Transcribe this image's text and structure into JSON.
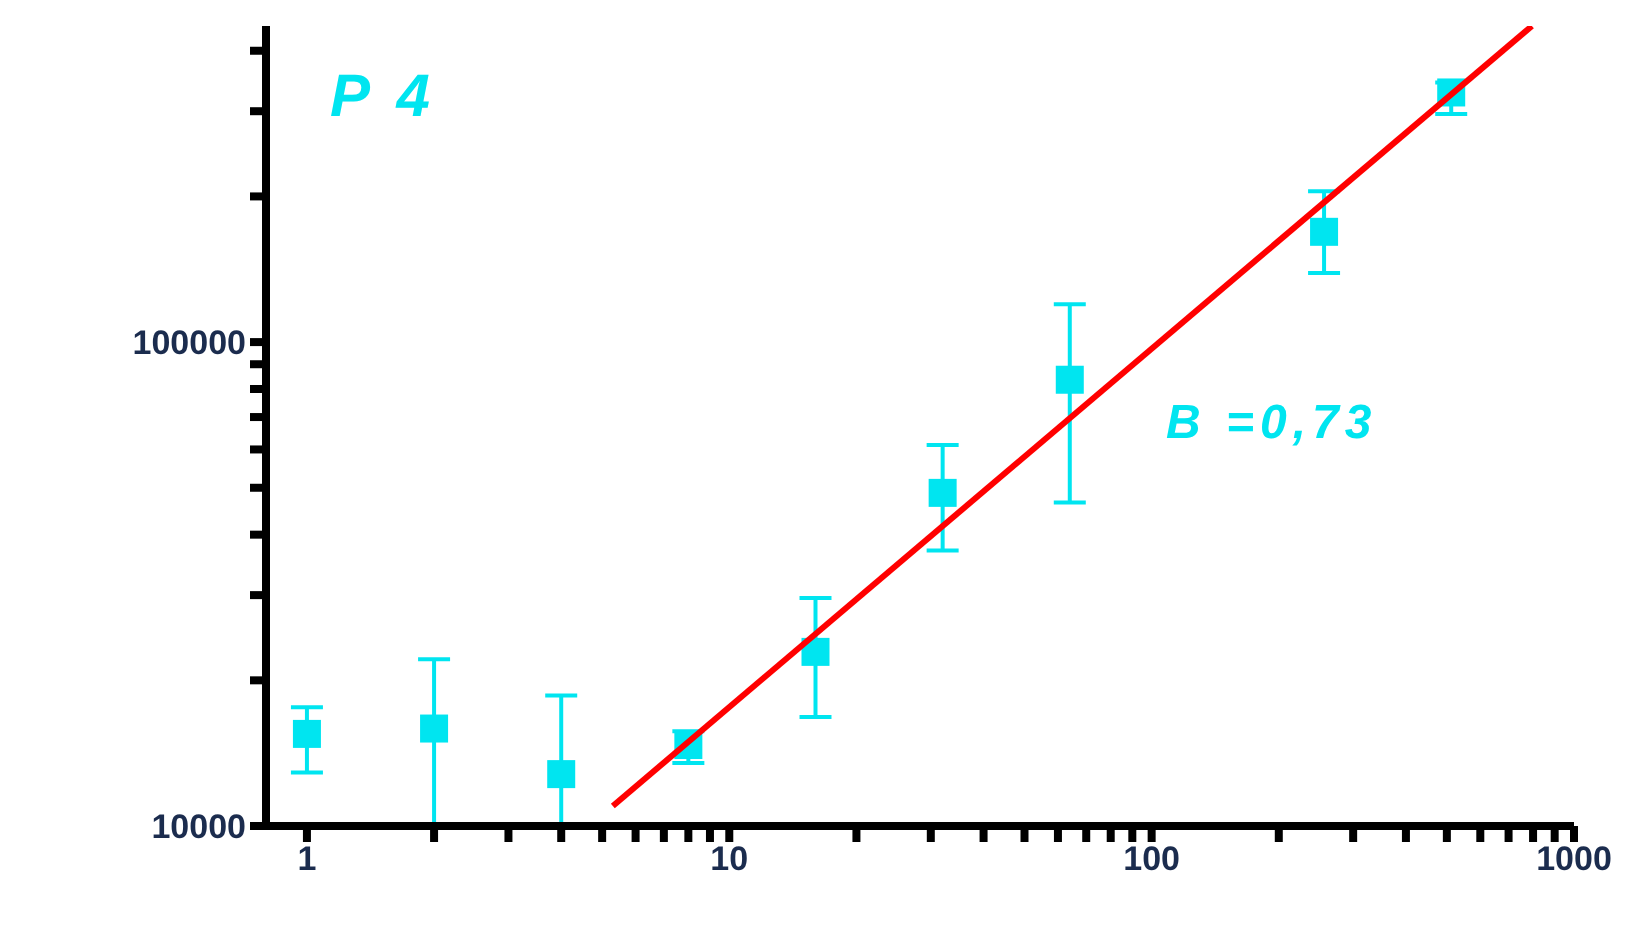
{
  "chart_data": {
    "type": "scatter",
    "annotations": [
      "P 4",
      "B =0,73"
    ],
    "log": "xy",
    "marker": "square",
    "xlim": [
      0.8,
      1000
    ],
    "xticks": [
      1,
      {
        "value": 2,
        "label": null
      },
      {
        "value": 3,
        "label": null
      },
      {
        "value": 4,
        "label": null
      },
      {
        "value": 5,
        "label": null
      },
      {
        "value": 6,
        "label": null
      },
      {
        "value": 7,
        "label": null
      },
      {
        "value": 8,
        "label": null
      },
      {
        "value": 9,
        "label": null
      },
      10,
      {
        "value": 20,
        "label": null
      },
      {
        "value": 30,
        "label": null
      },
      {
        "value": 40,
        "label": null
      },
      {
        "value": 50,
        "label": null
      },
      {
        "value": 60,
        "label": null
      },
      {
        "value": 70,
        "label": null
      },
      {
        "value": 80,
        "label": null
      },
      {
        "value": 90,
        "label": null
      },
      100,
      {
        "value": 200,
        "label": null
      },
      {
        "value": 300,
        "label": null
      },
      {
        "value": 400,
        "label": null
      },
      {
        "value": 500,
        "label": null
      },
      {
        "value": 600,
        "label": null
      },
      {
        "value": 700,
        "label": null
      },
      {
        "value": 800,
        "label": null
      },
      {
        "value": 900,
        "label": null
      },
      1000
    ],
    "ylim": [
      10000,
      450000
    ],
    "yticks": [
      10000,
      {
        "value": 20000,
        "label": null
      },
      {
        "value": 30000,
        "label": null
      },
      {
        "value": 40000,
        "label": null
      },
      {
        "value": 50000,
        "label": null
      },
      {
        "value": 60000,
        "label": null
      },
      {
        "value": 70000,
        "label": null
      },
      {
        "value": 80000,
        "label": null
      },
      {
        "value": 90000,
        "label": null
      },
      100000,
      {
        "value": 200000,
        "label": null
      },
      {
        "value": 300000,
        "label": null
      },
      {
        "value": 400000,
        "label": null
      }
    ],
    "series": [
      {
        "color": "#00e5f0",
        "x": [
          1,
          2,
          4,
          8,
          16,
          32,
          64,
          256,
          512
        ],
        "values": [
          15500,
          15900,
          12800,
          14700,
          22900,
          48800,
          83600,
          169000,
          328000
        ],
        "errors": [
          [
            12900,
            17600
          ],
          [
            10000,
            22100
          ],
          [
            10000,
            18600
          ],
          [
            13500,
            15700
          ],
          [
            16800,
            29600
          ],
          [
            37100,
            61300
          ],
          [
            46600,
            119700
          ],
          [
            139000,
            205000
          ],
          [
            296000,
            344000
          ]
        ]
      },
      {
        "type": "line",
        "color": "#ff0000",
        "x": [
          5.3,
          795
        ],
        "values": [
          11000,
          450000
        ],
        "marker": "none",
        "line_style": "solid"
      }
    ]
  }
}
